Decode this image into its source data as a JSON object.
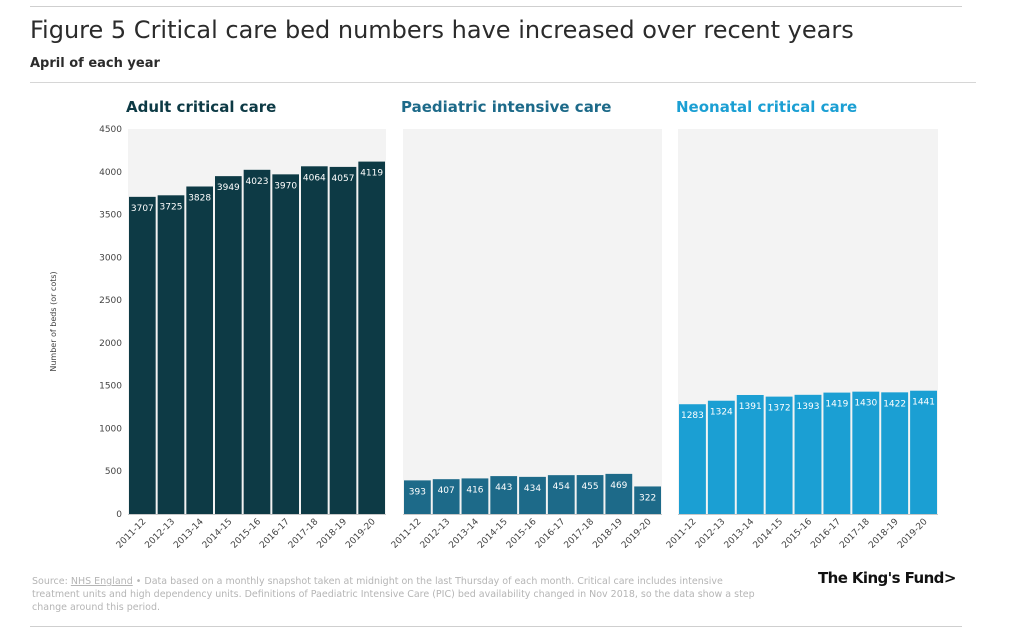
{
  "title": "Figure 5 Critical care bed numbers have increased over recent years",
  "subtitle": "April of each year",
  "footnote": {
    "source_prefix": "Source: ",
    "source_link": "NHS England",
    "text": " • Data based on a monthly snapshot taken at midnight on the last Thursday of each month. Critical care includes intensive treatment units and high dependency units. Definitions of Paediatric Intensive Care (PIC) bed availability changed in Nov 2018, so the data show a step change around this period."
  },
  "logo": "The King's Fund>",
  "colors": {
    "adult": "#0d3a45",
    "paediatric": "#1d6a89",
    "neonatal": "#1b9fd3",
    "panel_bg": "#f3f3f3"
  },
  "chart_data": [
    {
      "type": "bar",
      "title": "Adult critical care",
      "ylabel": "Number of beds (or cots)",
      "ylim": [
        0,
        4500
      ],
      "yticks": [
        0,
        500,
        1000,
        1500,
        2000,
        2500,
        3000,
        3500,
        4000,
        4500
      ],
      "categories": [
        "2011-12",
        "2012-13",
        "2013-14",
        "2014-15",
        "2015-16",
        "2016-17",
        "2017-18",
        "2018-19",
        "2019-20"
      ],
      "values": [
        3707,
        3725,
        3828,
        3949,
        4023,
        3970,
        4064,
        4057,
        4119
      ]
    },
    {
      "type": "bar",
      "title": "Paediatric intensive care",
      "ylim": [
        0,
        4500
      ],
      "categories": [
        "2011-12",
        "2012-13",
        "2013-14",
        "2014-15",
        "2015-16",
        "2016-17",
        "2017-18",
        "2018-19",
        "2019-20"
      ],
      "values": [
        393,
        407,
        416,
        443,
        434,
        454,
        455,
        469,
        322
      ]
    },
    {
      "type": "bar",
      "title": "Neonatal critical care",
      "ylim": [
        0,
        4500
      ],
      "categories": [
        "2011-12",
        "2012-13",
        "2013-14",
        "2014-15",
        "2015-16",
        "2016-17",
        "2017-18",
        "2018-19",
        "2019-20"
      ],
      "values": [
        1283,
        1324,
        1391,
        1372,
        1393,
        1419,
        1430,
        1422,
        1441
      ]
    }
  ]
}
